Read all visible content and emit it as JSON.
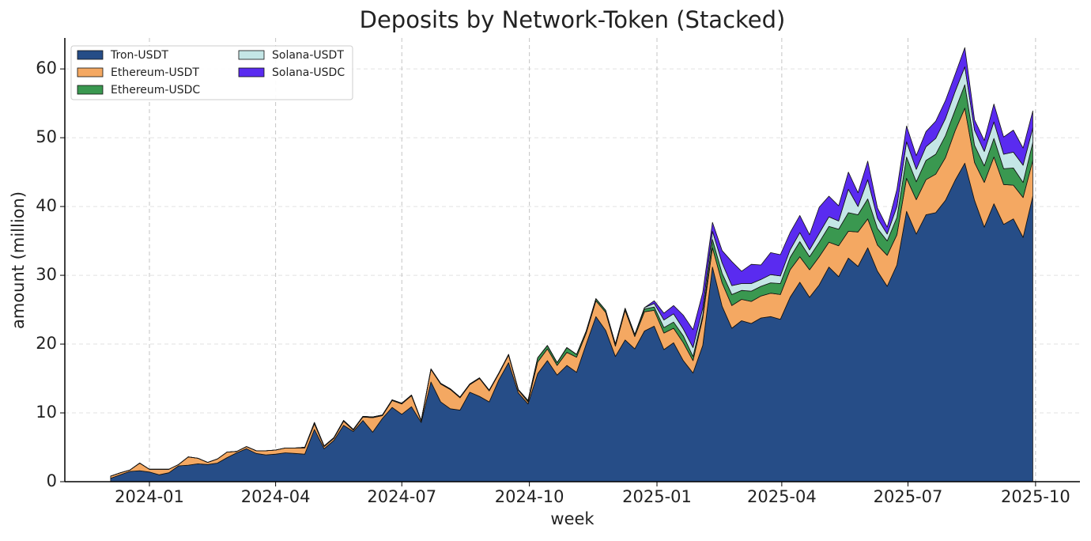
{
  "chart_data": {
    "type": "stacked_area",
    "title": "Deposits by Network-Token (Stacked)",
    "x_label": "week",
    "y_label": "amount (million)",
    "legend": "upper left",
    "grid": true,
    "xlim": [
      "2023-11-01",
      "2025-11-02"
    ],
    "xticks": [
      {
        "value": "2024-01-01",
        "label": "2024-01"
      },
      {
        "value": "2024-04-01",
        "label": "2024-04"
      },
      {
        "value": "2024-07-01",
        "label": "2024-07"
      },
      {
        "value": "2024-10-01",
        "label": "2024-10"
      },
      {
        "value": "2025-01-01",
        "label": "2025-01"
      },
      {
        "value": "2025-04-01",
        "label": "2025-04"
      },
      {
        "value": "2025-07-01",
        "label": "2025-07"
      },
      {
        "value": "2025-10-01",
        "label": "2025-10"
      }
    ],
    "ylim": [
      0,
      64.5
    ],
    "yticks": [
      0,
      10,
      20,
      30,
      40,
      50,
      60
    ],
    "x": [
      "2023-12-04",
      "2023-12-11",
      "2023-12-18",
      "2023-12-25",
      "2024-01-01",
      "2024-01-08",
      "2024-01-15",
      "2024-01-22",
      "2024-01-29",
      "2024-02-05",
      "2024-02-12",
      "2024-02-19",
      "2024-02-26",
      "2024-03-04",
      "2024-03-11",
      "2024-03-18",
      "2024-03-25",
      "2024-04-01",
      "2024-04-08",
      "2024-04-15",
      "2024-04-22",
      "2024-04-29",
      "2024-05-06",
      "2024-05-13",
      "2024-05-20",
      "2024-05-27",
      "2024-06-03",
      "2024-06-10",
      "2024-06-17",
      "2024-06-24",
      "2024-07-01",
      "2024-07-08",
      "2024-07-15",
      "2024-07-22",
      "2024-07-29",
      "2024-08-05",
      "2024-08-12",
      "2024-08-19",
      "2024-08-26",
      "2024-09-02",
      "2024-09-09",
      "2024-09-16",
      "2024-09-23",
      "2024-09-30",
      "2024-10-07",
      "2024-10-14",
      "2024-10-21",
      "2024-10-28",
      "2024-11-04",
      "2024-11-11",
      "2024-11-18",
      "2024-11-25",
      "2024-12-02",
      "2024-12-09",
      "2024-12-16",
      "2024-12-23",
      "2024-12-30",
      "2025-01-06",
      "2025-01-13",
      "2025-01-20",
      "2025-01-27",
      "2025-02-03",
      "2025-02-10",
      "2025-02-17",
      "2025-02-24",
      "2025-03-03",
      "2025-03-10",
      "2025-03-17",
      "2025-03-24",
      "2025-03-31",
      "2025-04-07",
      "2025-04-14",
      "2025-04-21",
      "2025-04-28",
      "2025-05-05",
      "2025-05-12",
      "2025-05-19",
      "2025-05-26",
      "2025-06-02",
      "2025-06-09",
      "2025-06-16",
      "2025-06-23",
      "2025-06-30",
      "2025-07-07",
      "2025-07-14",
      "2025-07-21",
      "2025-07-28",
      "2025-08-04",
      "2025-08-11",
      "2025-08-18",
      "2025-08-25",
      "2025-09-01",
      "2025-09-08",
      "2025-09-15",
      "2025-09-22",
      "2025-09-29"
    ],
    "series": [
      {
        "name": "Tron-USDT",
        "color": "#264d87",
        "values": [
          0.5,
          1.0,
          1.5,
          1.6,
          1.4,
          1.0,
          1.3,
          2.3,
          2.4,
          2.6,
          2.5,
          2.7,
          3.5,
          4.2,
          4.8,
          4.1,
          3.9,
          4.0,
          4.2,
          4.1,
          4.0,
          7.6,
          4.8,
          6.0,
          8.2,
          7.3,
          8.9,
          7.2,
          9.2,
          10.8,
          9.8,
          10.9,
          8.6,
          14.5,
          11.6,
          10.6,
          10.4,
          13.0,
          12.4,
          11.6,
          14.8,
          17.3,
          12.9,
          11.3,
          15.7,
          17.6,
          15.5,
          16.9,
          15.9,
          20.0,
          24.0,
          22.0,
          18.2,
          20.6,
          19.3,
          21.9,
          22.6,
          19.2,
          20.2,
          17.6,
          15.8,
          19.8,
          31.2,
          25.5,
          22.3,
          23.4,
          23.0,
          23.8,
          24.0,
          23.6,
          26.8,
          29.0,
          26.8,
          28.6,
          31.2,
          29.8,
          32.5,
          31.3,
          34.0,
          30.6,
          28.4,
          31.5,
          39.3,
          36.0,
          38.8,
          39.1,
          40.9,
          43.8,
          46.3,
          40.9,
          37.0,
          40.4,
          37.4,
          38.2,
          35.5,
          41.5
        ]
      },
      {
        "name": "Ethereum-USDT",
        "color": "#f4a862",
        "values": [
          0.3,
          0.3,
          0.2,
          1.1,
          0.4,
          0.8,
          0.5,
          0.2,
          1.2,
          0.8,
          0.3,
          0.6,
          0.8,
          0.2,
          0.3,
          0.4,
          0.6,
          0.6,
          0.7,
          0.8,
          0.9,
          0.8,
          0.3,
          0.3,
          0.6,
          0.2,
          0.5,
          2.1,
          0.4,
          1.0,
          1.5,
          1.6,
          0.2,
          1.8,
          2.6,
          2.8,
          1.8,
          1.1,
          2.6,
          1.6,
          0.9,
          1.1,
          0.4,
          0.3,
          1.7,
          1.7,
          1.4,
          1.9,
          2.2,
          1.6,
          2.3,
          2.6,
          1.5,
          4.3,
          1.8,
          2.8,
          2.3,
          2.4,
          2.1,
          2.6,
          1.8,
          4.0,
          2.8,
          3.4,
          3.3,
          3.1,
          3.2,
          3.2,
          3.4,
          3.6,
          4.0,
          3.7,
          4.0,
          4.1,
          3.6,
          4.5,
          3.9,
          5.0,
          4.2,
          3.8,
          4.5,
          4.4,
          4.8,
          5.0,
          5.1,
          5.6,
          6.2,
          7.2,
          8.0,
          5.5,
          6.5,
          6.8,
          5.8,
          4.9,
          5.8,
          5.2
        ]
      },
      {
        "name": "Ethereum-USDC",
        "color": "#3a9850",
        "values": [
          0,
          0,
          0,
          0,
          0,
          0,
          0,
          0,
          0,
          0,
          0,
          0,
          0,
          0,
          0,
          0,
          0,
          0,
          0,
          0,
          0.1,
          0.2,
          0.1,
          0.1,
          0.1,
          0.1,
          0.1,
          0.1,
          0.1,
          0.1,
          0.1,
          0.1,
          0.1,
          0.1,
          0.1,
          0.1,
          0.1,
          0.1,
          0.1,
          0.1,
          0.1,
          0.1,
          0.1,
          0.2,
          0.6,
          0.5,
          0.4,
          0.7,
          0.4,
          0.3,
          0.3,
          0.3,
          0.3,
          0.3,
          0.3,
          0.4,
          0.5,
          0.8,
          0.9,
          1.0,
          0.6,
          0.4,
          1.2,
          1.4,
          1.6,
          1.3,
          1.5,
          1.4,
          1.5,
          1.6,
          1.8,
          2.2,
          1.9,
          2.1,
          2.3,
          2.4,
          2.7,
          2.5,
          2.9,
          2.4,
          2.1,
          2.5,
          3.1,
          2.6,
          2.8,
          2.9,
          3.2,
          3.0,
          3.4,
          2.5,
          2.4,
          2.7,
          2.3,
          2.5,
          2.2,
          2.6
        ]
      },
      {
        "name": "Solana-USDT",
        "color": "#c4e6e6",
        "values": [
          0,
          0,
          0,
          0,
          0,
          0,
          0,
          0,
          0,
          0,
          0,
          0,
          0,
          0,
          0,
          0,
          0,
          0,
          0,
          0,
          0,
          0,
          0,
          0,
          0,
          0,
          0,
          0,
          0,
          0,
          0,
          0,
          0,
          0,
          0,
          0,
          0,
          0,
          0,
          0,
          0,
          0,
          0,
          0,
          0,
          0,
          0,
          0,
          0,
          0,
          0,
          0,
          0,
          0,
          0,
          0.2,
          0.5,
          1.1,
          1.2,
          1.0,
          1.3,
          1.0,
          1.2,
          1.5,
          1.3,
          1.0,
          1.1,
          1.0,
          1.2,
          1.1,
          1.1,
          1.3,
          1.0,
          1.3,
          1.4,
          1.2,
          3.4,
          1.2,
          2.8,
          1.5,
          1.0,
          1.6,
          2.2,
          1.8,
          2.0,
          2.3,
          2.5,
          2.7,
          2.6,
          2.2,
          2.1,
          2.4,
          2.1,
          2.3,
          2.5,
          2.1
        ]
      },
      {
        "name": "Solana-USDC",
        "color": "#5a2bf0",
        "values": [
          0,
          0,
          0,
          0,
          0,
          0,
          0,
          0,
          0,
          0,
          0,
          0,
          0,
          0,
          0,
          0,
          0,
          0,
          0,
          0,
          0,
          0,
          0,
          0,
          0,
          0,
          0,
          0,
          0,
          0,
          0,
          0,
          0,
          0,
          0,
          0,
          0,
          0,
          0,
          0,
          0,
          0,
          0,
          0,
          0,
          0,
          0,
          0,
          0,
          0,
          0,
          0,
          0,
          0,
          0,
          0,
          0.4,
          1.0,
          1.2,
          2.0,
          2.6,
          2.3,
          1.3,
          1.8,
          3.5,
          1.8,
          2.8,
          2.1,
          3.2,
          3.1,
          2.5,
          2.5,
          2.2,
          3.8,
          3.0,
          2.2,
          2.5,
          2.0,
          2.7,
          1.5,
          1.0,
          2.5,
          2.3,
          2.0,
          2.2,
          2.5,
          2.6,
          2.5,
          2.8,
          1.5,
          1.6,
          2.6,
          2.5,
          3.2,
          2.5,
          2.5
        ]
      }
    ]
  }
}
